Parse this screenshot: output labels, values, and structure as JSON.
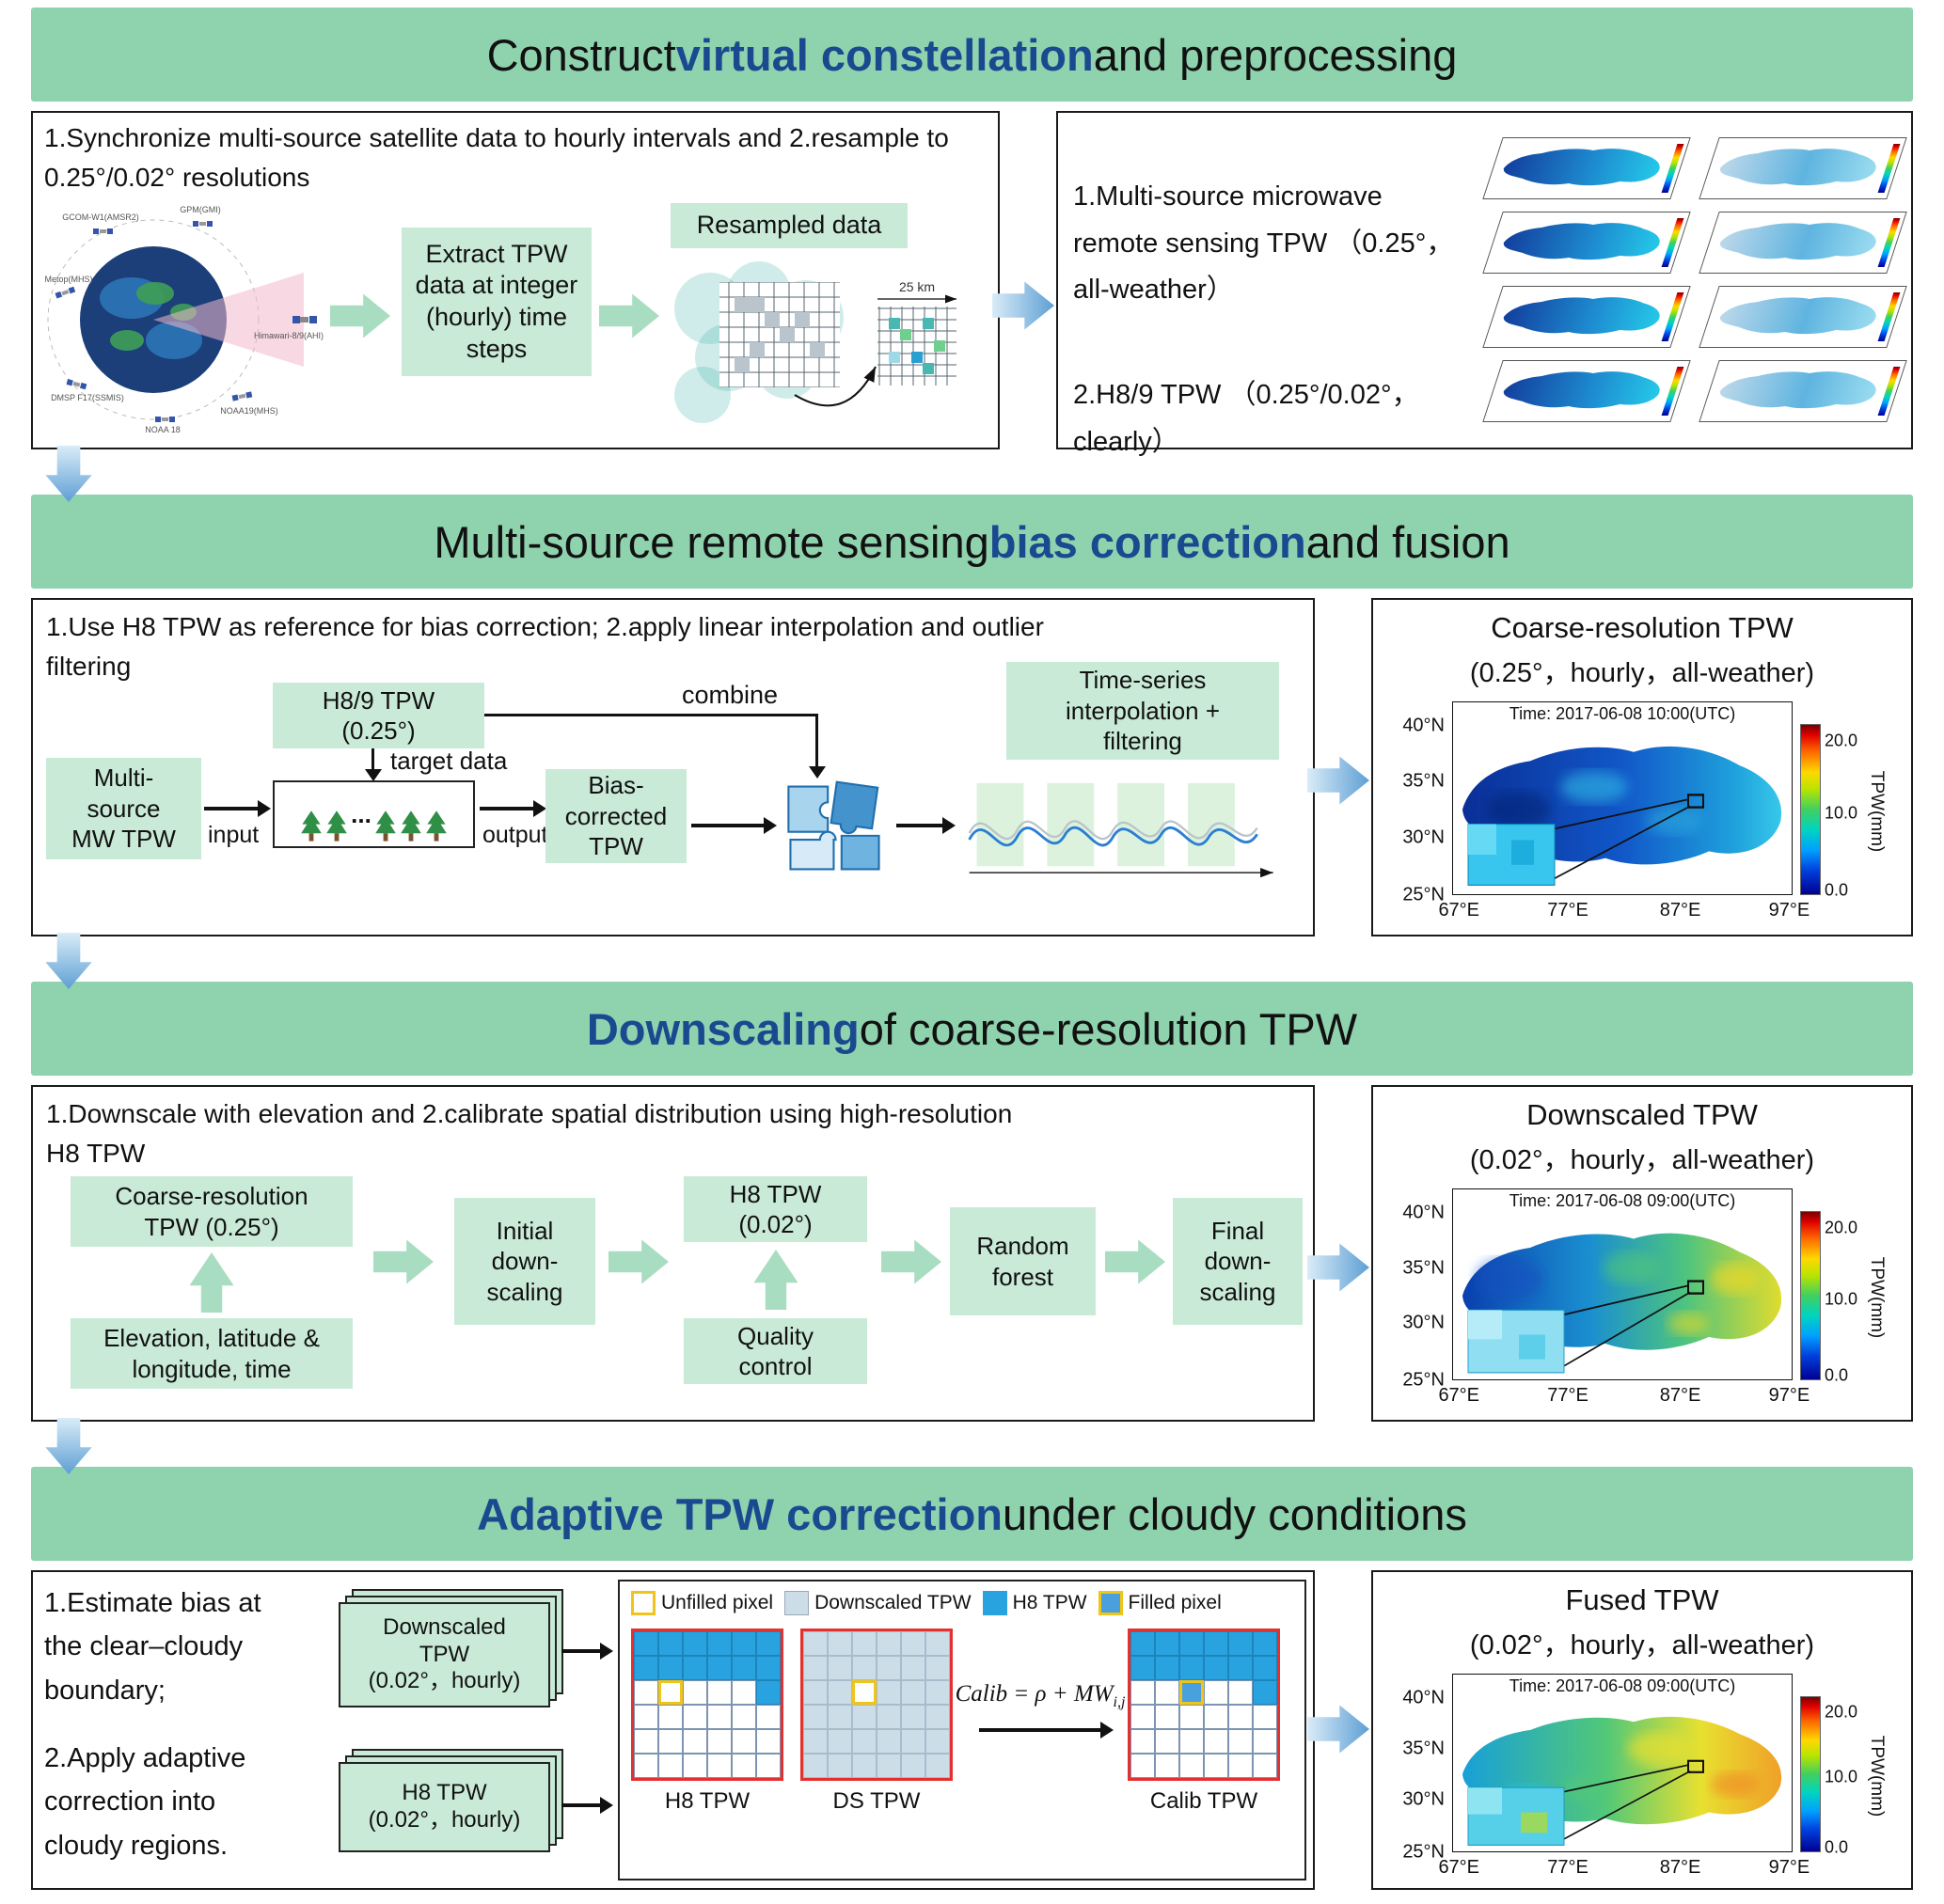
{
  "colors": {
    "banner_green": "#8fd2ae",
    "accent_blue": "#1b4990",
    "box_green": "#c9ead6",
    "chevron_green": "#a9ddc1",
    "flow_arrow_blue": "#5e9fd4",
    "h8_blue": "#29a3e0",
    "downscaled_blue": "#ccdde8",
    "filled_blue": "#4aa0dc",
    "unfilled_yellow": "#f0c419",
    "grid_border_red": "#e53030"
  },
  "s1": {
    "banner": {
      "pre": "Construct ",
      "em": "virtual constellation",
      "post": " and preprocessing"
    },
    "left": {
      "desc": "1.Synchronize multi-source satellite data to hourly intervals and 2.resample to\n0.25°/0.02° resolutions",
      "satellites": [
        "GCOM-W1(AMSR2)",
        "GPM(GMI)",
        "Metop(MHS)",
        "DMSP F17(SSMIS)",
        "NOAA 18",
        "NOAA19(MHS)",
        "Himawari-8/9(AHI)"
      ],
      "extract_box": "Extract TPW\ndata at integer\n(hourly) time\nsteps",
      "resampled_label": "Resampled data",
      "scale_label": "25 km"
    },
    "right": {
      "line1": "1.Multi-source microwave remote sensing TPW （0.25°，all-weather）",
      "line2": "2.H8/9 TPW （0.25°/0.02°，clearly）"
    }
  },
  "s2": {
    "banner": {
      "pre": "Multi-source remote sensing ",
      "em": "bias correction",
      "post": " and fusion"
    },
    "left": {
      "desc": "1.Use H8 TPW as reference for bias correction; 2.apply linear interpolation and outlier\nfiltering",
      "h89_box": "H8/9 TPW\n(0.25°)",
      "target_label": "target data",
      "mw_box": "Multi-\nsource\nMW TPW",
      "input_label": "input",
      "output_label": "output",
      "bias_box": "Bias-\ncorrected\nTPW",
      "combine_label": "combine",
      "forest_ellipsis": "...",
      "ts_box": "Time-series\ninterpolation +\nfiltering"
    },
    "right": {
      "title": "Coarse-resolution TPW",
      "subtitle": "(0.25°，hourly，all-weather)",
      "map": {
        "time": "Time: 2017-06-08 10:00(UTC)",
        "yticks": [
          "40°N",
          "35°N",
          "30°N",
          "25°N"
        ],
        "xticks": [
          "67°E",
          "77°E",
          "87°E",
          "97°E"
        ],
        "cticks": [
          "20.0",
          "10.0",
          "0.0"
        ],
        "clabel": "TPW(mm)"
      }
    }
  },
  "s3": {
    "banner": {
      "pre": "",
      "em": "Downscaling",
      "post": " of coarse-resolution TPW"
    },
    "left": {
      "desc": "1.Downscale with elevation and 2.calibrate spatial distribution using high-resolution\nH8 TPW",
      "coarse_box": "Coarse-resolution\nTPW (0.25°)",
      "elev_box": "Elevation, latitude &\nlongitude, time",
      "initial_box": "Initial\ndown-\nscaling",
      "h8_box": "H8 TPW\n(0.02°)",
      "qc_box": "Quality\ncontrol",
      "rf_box": "Random\nforest",
      "final_box": "Final\ndown-\nscaling"
    },
    "right": {
      "title": "Downscaled TPW",
      "subtitle": "(0.02°，hourly，all-weather)",
      "map": {
        "time": "Time: 2017-06-08 09:00(UTC)",
        "yticks": [
          "40°N",
          "35°N",
          "30°N",
          "25°N"
        ],
        "xticks": [
          "67°E",
          "77°E",
          "87°E",
          "97°E"
        ],
        "cticks": [
          "20.0",
          "10.0",
          "0.0"
        ],
        "clabel": "TPW(mm)"
      }
    }
  },
  "s4": {
    "banner": {
      "pre": "",
      "em": "Adaptive TPW correction",
      "post": " under cloudy conditions"
    },
    "left": {
      "desc1": "1.Estimate bias at\nthe clear–cloudy\nboundary;",
      "desc2": "2.Apply adaptive\ncorrection into\ncloudy regions.",
      "doc1": "Downscaled\nTPW\n(0.02°，hourly)",
      "doc2": "H8 TPW\n(0.02°，hourly)",
      "legend": [
        "Unfilled pixel",
        "Downscaled TPW",
        "H8 TPW",
        "Filled pixel"
      ],
      "grids": [
        {
          "label": "H8 TPW",
          "pattern": [
            "BBBBBB",
            "BBBBBB",
            "WUWWWB",
            "WWWWWW",
            "WWWWWW",
            "WWWWWW"
          ]
        },
        {
          "label": "DS TPW",
          "pattern": [
            "LLLLLL",
            "LLLLLL",
            "LLULLL",
            "LLLLLL",
            "LLLLLL",
            "LLLLLL"
          ]
        },
        {
          "label": "Calib TPW",
          "pattern": [
            "BBBBBB",
            "BBBBBB",
            "WWFWWB",
            "WWWWWW",
            "WWWWWW",
            "WWWWWW"
          ]
        }
      ],
      "formula_main": "Calib = ρ + MW",
      "formula_sub": "i,j"
    },
    "right": {
      "title": "Fused TPW",
      "subtitle": "(0.02°，hourly，all-weather)",
      "map": {
        "time": "Time: 2017-06-08 09:00(UTC)",
        "yticks": [
          "40°N",
          "35°N",
          "30°N",
          "25°N"
        ],
        "xticks": [
          "67°E",
          "77°E",
          "87°E",
          "97°E"
        ],
        "cticks": [
          "20.0",
          "10.0",
          "0.0"
        ],
        "clabel": "TPW(mm)"
      }
    }
  }
}
